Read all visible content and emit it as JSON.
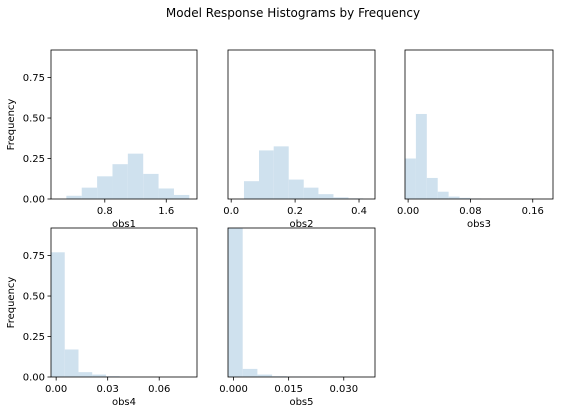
{
  "figure": {
    "title": "Model Response Histograms by Frequency",
    "colors": {
      "bar": "#cfe1ee",
      "frame": "#000000",
      "background": "#ffffff"
    }
  },
  "chart_data": [
    {
      "type": "bar",
      "name": "obs1",
      "xlabel": "obs1",
      "ylabel": "Frequency",
      "xlim": [
        0.1,
        2.0
      ],
      "ylim": [
        0,
        0.92
      ],
      "xticks": [
        0.8,
        1.6
      ],
      "xtick_labels": [
        "0.8",
        "1.6"
      ],
      "yticks": [
        0,
        0.25,
        0.5,
        0.75
      ],
      "ytick_labels": [
        "0.00",
        "0.25",
        "0.50",
        "0.75"
      ],
      "show_yticks": true,
      "bin_edges": [
        0.1,
        0.3,
        0.5,
        0.7,
        0.9,
        1.1,
        1.3,
        1.5,
        1.7,
        1.9
      ],
      "values": [
        0.0,
        0.02,
        0.07,
        0.14,
        0.215,
        0.28,
        0.155,
        0.065,
        0.025
      ],
      "grid": false
    },
    {
      "type": "bar",
      "name": "obs2",
      "xlabel": "obs2",
      "ylabel": "",
      "xlim": [
        -0.01,
        0.45
      ],
      "ylim": [
        0,
        0.92
      ],
      "xticks": [
        0.0,
        0.2,
        0.4
      ],
      "xtick_labels": [
        "0.0",
        "0.2",
        "0.4"
      ],
      "yticks": [],
      "ytick_labels": [],
      "show_yticks": false,
      "bin_edges": [
        0.0,
        0.04,
        0.087,
        0.133,
        0.18,
        0.227,
        0.273,
        0.32,
        0.367,
        0.413
      ],
      "values": [
        0.0,
        0.11,
        0.3,
        0.325,
        0.12,
        0.07,
        0.03,
        0.01,
        0.004
      ],
      "grid": false
    },
    {
      "type": "bar",
      "name": "obs3",
      "xlabel": "obs3",
      "ylabel": "",
      "xlim": [
        -0.004,
        0.186
      ],
      "ylim": [
        0,
        0.92
      ],
      "xticks": [
        0.0,
        0.08,
        0.16
      ],
      "xtick_labels": [
        "0.00",
        "0.08",
        "0.16"
      ],
      "yticks": [],
      "ytick_labels": [],
      "show_yticks": false,
      "bin_edges": [
        -0.004,
        0.01,
        0.024,
        0.038,
        0.052,
        0.066,
        0.08,
        0.094,
        0.108
      ],
      "values": [
        0.25,
        0.525,
        0.13,
        0.045,
        0.015,
        0.007,
        0.003,
        0.0
      ],
      "grid": false
    },
    {
      "type": "bar",
      "name": "obs4",
      "xlabel": "obs4",
      "ylabel": "Frequency",
      "xlim": [
        -0.003,
        0.082
      ],
      "ylim": [
        0,
        0.92
      ],
      "xticks": [
        0.0,
        0.03,
        0.06
      ],
      "xtick_labels": [
        "0.00",
        "0.03",
        "0.06"
      ],
      "yticks": [
        0,
        0.25,
        0.5,
        0.75
      ],
      "ytick_labels": [
        "0.00",
        "0.25",
        "0.50",
        "0.75"
      ],
      "show_yticks": true,
      "bin_edges": [
        -0.003,
        0.005,
        0.013,
        0.021,
        0.029,
        0.037,
        0.045,
        0.053,
        0.061,
        0.069,
        0.077
      ],
      "values": [
        0.77,
        0.17,
        0.03,
        0.015,
        0.005,
        0.002,
        0.001,
        0.001,
        0.001,
        0.001
      ],
      "grid": false
    },
    {
      "type": "bar",
      "name": "obs5",
      "xlabel": "obs5",
      "ylabel": "",
      "xlim": [
        -0.0015,
        0.0385
      ],
      "ylim": [
        0,
        0.92
      ],
      "xticks": [
        0.0,
        0.015,
        0.03
      ],
      "xtick_labels": [
        "0.000",
        "0.015",
        "0.030"
      ],
      "yticks": [],
      "ytick_labels": [],
      "show_yticks": false,
      "bin_edges": [
        -0.0015,
        0.0025,
        0.0065,
        0.0105,
        0.0145,
        0.0185,
        0.0225,
        0.0265,
        0.0305,
        0.0345
      ],
      "values": [
        0.92,
        0.05,
        0.015,
        0.005,
        0.003,
        0.002,
        0.001,
        0.002,
        0.001
      ],
      "grid": false
    }
  ]
}
